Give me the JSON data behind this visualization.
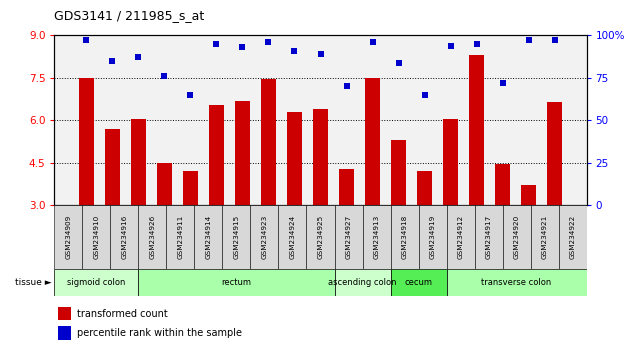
{
  "title": "GDS3141 / 211985_s_at",
  "samples": [
    "GSM234909",
    "GSM234910",
    "GSM234916",
    "GSM234926",
    "GSM234911",
    "GSM234914",
    "GSM234915",
    "GSM234923",
    "GSM234924",
    "GSM234925",
    "GSM234927",
    "GSM234913",
    "GSM234918",
    "GSM234919",
    "GSM234912",
    "GSM234917",
    "GSM234920",
    "GSM234921",
    "GSM234922"
  ],
  "transformed_count": [
    7.5,
    5.7,
    6.05,
    4.5,
    4.2,
    6.55,
    6.7,
    7.45,
    6.3,
    6.4,
    4.3,
    7.5,
    5.3,
    4.2,
    6.05,
    8.3,
    4.45,
    3.7,
    6.65
  ],
  "percentile_rank": [
    97,
    85,
    87,
    76,
    65,
    95,
    93,
    96,
    91,
    89,
    70,
    96,
    84,
    65,
    94,
    95,
    72,
    97,
    97
  ],
  "tissue_groups": [
    {
      "label": "sigmoid colon",
      "start": 0,
      "end": 3,
      "color": "#ccffcc"
    },
    {
      "label": "rectum",
      "start": 3,
      "end": 10,
      "color": "#aaffaa"
    },
    {
      "label": "ascending colon",
      "start": 10,
      "end": 12,
      "color": "#ccffcc"
    },
    {
      "label": "cecum",
      "start": 12,
      "end": 14,
      "color": "#55ee55"
    },
    {
      "label": "transverse colon",
      "start": 14,
      "end": 19,
      "color": "#aaffaa"
    }
  ],
  "bar_color": "#cc0000",
  "dot_color": "#0000cc",
  "ylim_left": [
    3,
    9
  ],
  "ylim_right": [
    0,
    100
  ],
  "yticks_left": [
    3,
    4.5,
    6,
    7.5,
    9
  ],
  "yticks_right": [
    0,
    25,
    50,
    75,
    100
  ],
  "grid_lines": [
    4.5,
    6.0,
    7.5
  ],
  "bar_width": 0.6,
  "plot_bg": "#f2f2f2",
  "sample_box_color": "#d8d8d8"
}
